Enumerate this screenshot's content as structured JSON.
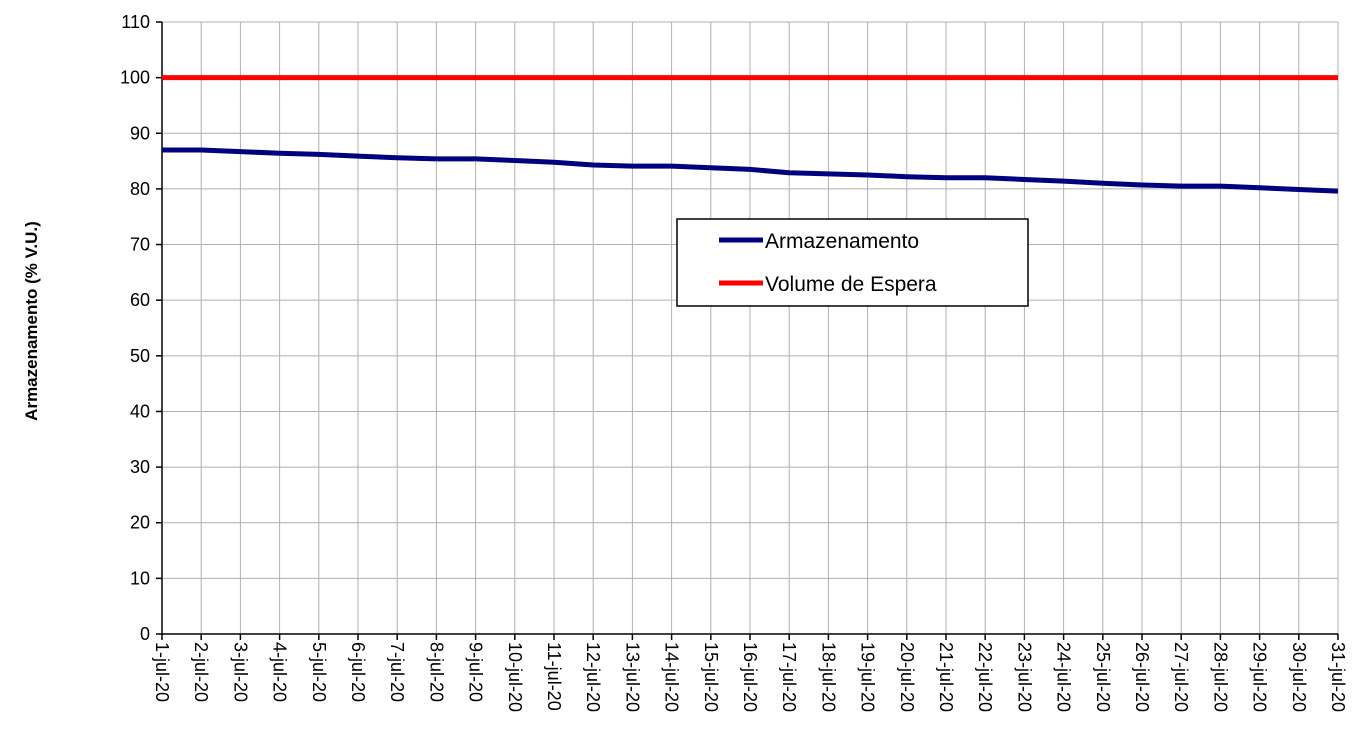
{
  "chart_data": {
    "type": "line",
    "title": "",
    "xlabel": "",
    "ylabel": "Armazenamento (% V.U.)",
    "ylim": [
      0,
      110
    ],
    "yticks": [
      0,
      10,
      20,
      30,
      40,
      50,
      60,
      70,
      80,
      90,
      100,
      110
    ],
    "grid": true,
    "legend_position": "center-right",
    "categories": [
      "1-jul-20",
      "2-jul-20",
      "3-jul-20",
      "4-jul-20",
      "5-jul-20",
      "6-jul-20",
      "7-jul-20",
      "8-jul-20",
      "9-jul-20",
      "10-jul-20",
      "11-jul-20",
      "12-jul-20",
      "13-jul-20",
      "14-jul-20",
      "15-jul-20",
      "16-jul-20",
      "17-jul-20",
      "18-jul-20",
      "19-jul-20",
      "20-jul-20",
      "21-jul-20",
      "22-jul-20",
      "23-jul-20",
      "24-jul-20",
      "25-jul-20",
      "26-jul-20",
      "27-jul-20",
      "28-jul-20",
      "29-jul-20",
      "30-jul-20",
      "31-jul-20"
    ],
    "series": [
      {
        "name": "Armazenamento",
        "color": "#000080",
        "values": [
          87.0,
          87.0,
          86.7,
          86.4,
          86.2,
          85.9,
          85.6,
          85.4,
          85.4,
          85.1,
          84.8,
          84.3,
          84.1,
          84.1,
          83.8,
          83.5,
          82.9,
          82.7,
          82.5,
          82.2,
          82.0,
          82.0,
          81.7,
          81.4,
          81.0,
          80.7,
          80.5,
          80.5,
          80.2,
          79.9,
          79.6
        ]
      },
      {
        "name": "Volume de Espera",
        "color": "#ff0000",
        "values": [
          100,
          100,
          100,
          100,
          100,
          100,
          100,
          100,
          100,
          100,
          100,
          100,
          100,
          100,
          100,
          100,
          100,
          100,
          100,
          100,
          100,
          100,
          100,
          100,
          100,
          100,
          100,
          100,
          100,
          100,
          100
        ]
      }
    ]
  }
}
